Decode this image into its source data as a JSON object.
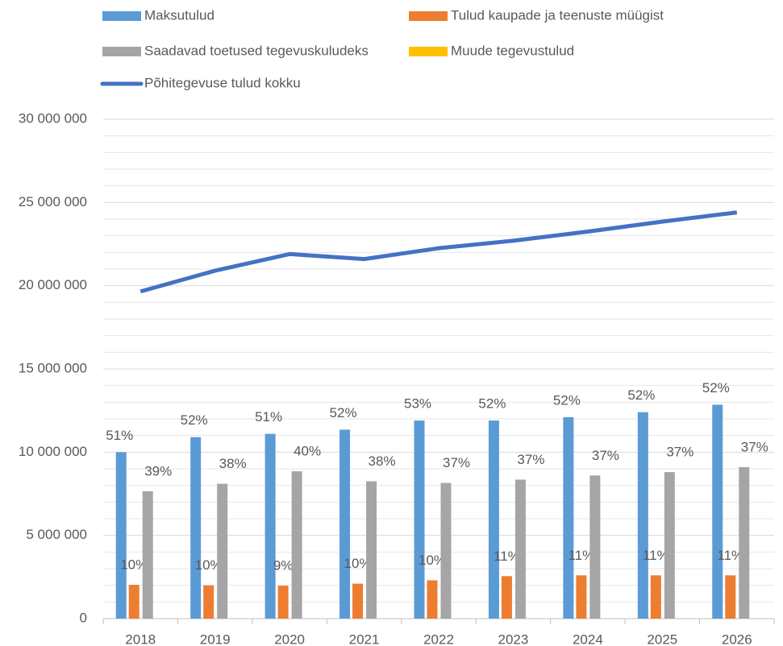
{
  "chart_data": {
    "type": "bar_line",
    "categories": [
      "2018",
      "2019",
      "2020",
      "2021",
      "2022",
      "2023",
      "2024",
      "2025",
      "2026"
    ],
    "series": [
      {
        "name": "Maksutulud",
        "color": "#5b9bd5",
        "kind": "bar",
        "values": [
          10000000,
          10900000,
          11100000,
          11350000,
          11900000,
          11900000,
          12100000,
          12400000,
          12850000
        ],
        "share_labels": [
          "51%",
          "52%",
          "51%",
          "52%",
          "53%",
          "52%",
          "52%",
          "52%",
          "52%"
        ]
      },
      {
        "name": "Tulud kaupade ja teenuste müügist",
        "color": "#ed7d31",
        "kind": "bar",
        "values": [
          2030000,
          2000000,
          1980000,
          2100000,
          2300000,
          2550000,
          2600000,
          2600000,
          2600000
        ],
        "share_labels": [
          "10%",
          "10%",
          "9%",
          "10%",
          "10%",
          "11%",
          "11%",
          "11%",
          "11%"
        ]
      },
      {
        "name": "Saadavad toetused tegevuskuludeks",
        "color": "#a5a5a5",
        "kind": "bar",
        "values": [
          7650000,
          8100000,
          8850000,
          8250000,
          8150000,
          8350000,
          8600000,
          8800000,
          9100000
        ],
        "share_labels": [
          "39%",
          "38%",
          "40%",
          "38%",
          "37%",
          "37%",
          "37%",
          "37%",
          "37%"
        ]
      },
      {
        "name": "Muude tegevustulud",
        "color": "#ffc000",
        "kind": "bar",
        "values": [
          0,
          0,
          0,
          0,
          0,
          0,
          0,
          0,
          0
        ]
      },
      {
        "name": "Põhitegevuse tulud kokku",
        "color": "#4472c4",
        "kind": "line",
        "values": [
          19650000,
          20900000,
          21900000,
          21600000,
          22250000,
          22700000,
          23250000,
          23850000,
          24400000
        ]
      }
    ],
    "ylim": [
      0,
      30000000
    ],
    "yticks": [
      0,
      {
        "value": 5000000,
        "label": "5 000 000"
      },
      {
        "value": 10000000,
        "label": "10 000 000"
      },
      {
        "value": 15000000,
        "label": "15 000 000"
      },
      {
        "value": 20000000,
        "label": "20 000 000"
      },
      {
        "value": 25000000,
        "label": "25 000 000"
      },
      {
        "value": 30000000,
        "label": "30 000 000"
      }
    ],
    "minor_yticks": [
      1000000,
      2000000,
      3000000,
      4000000,
      6000000,
      7000000,
      8000000,
      9000000,
      11000000,
      12000000,
      13000000,
      14000000,
      16000000,
      17000000,
      18000000,
      19000000,
      21000000,
      22000000,
      23000000,
      24000000,
      26000000,
      27000000,
      28000000,
      29000000
    ],
    "grid": true,
    "legend": "top"
  }
}
